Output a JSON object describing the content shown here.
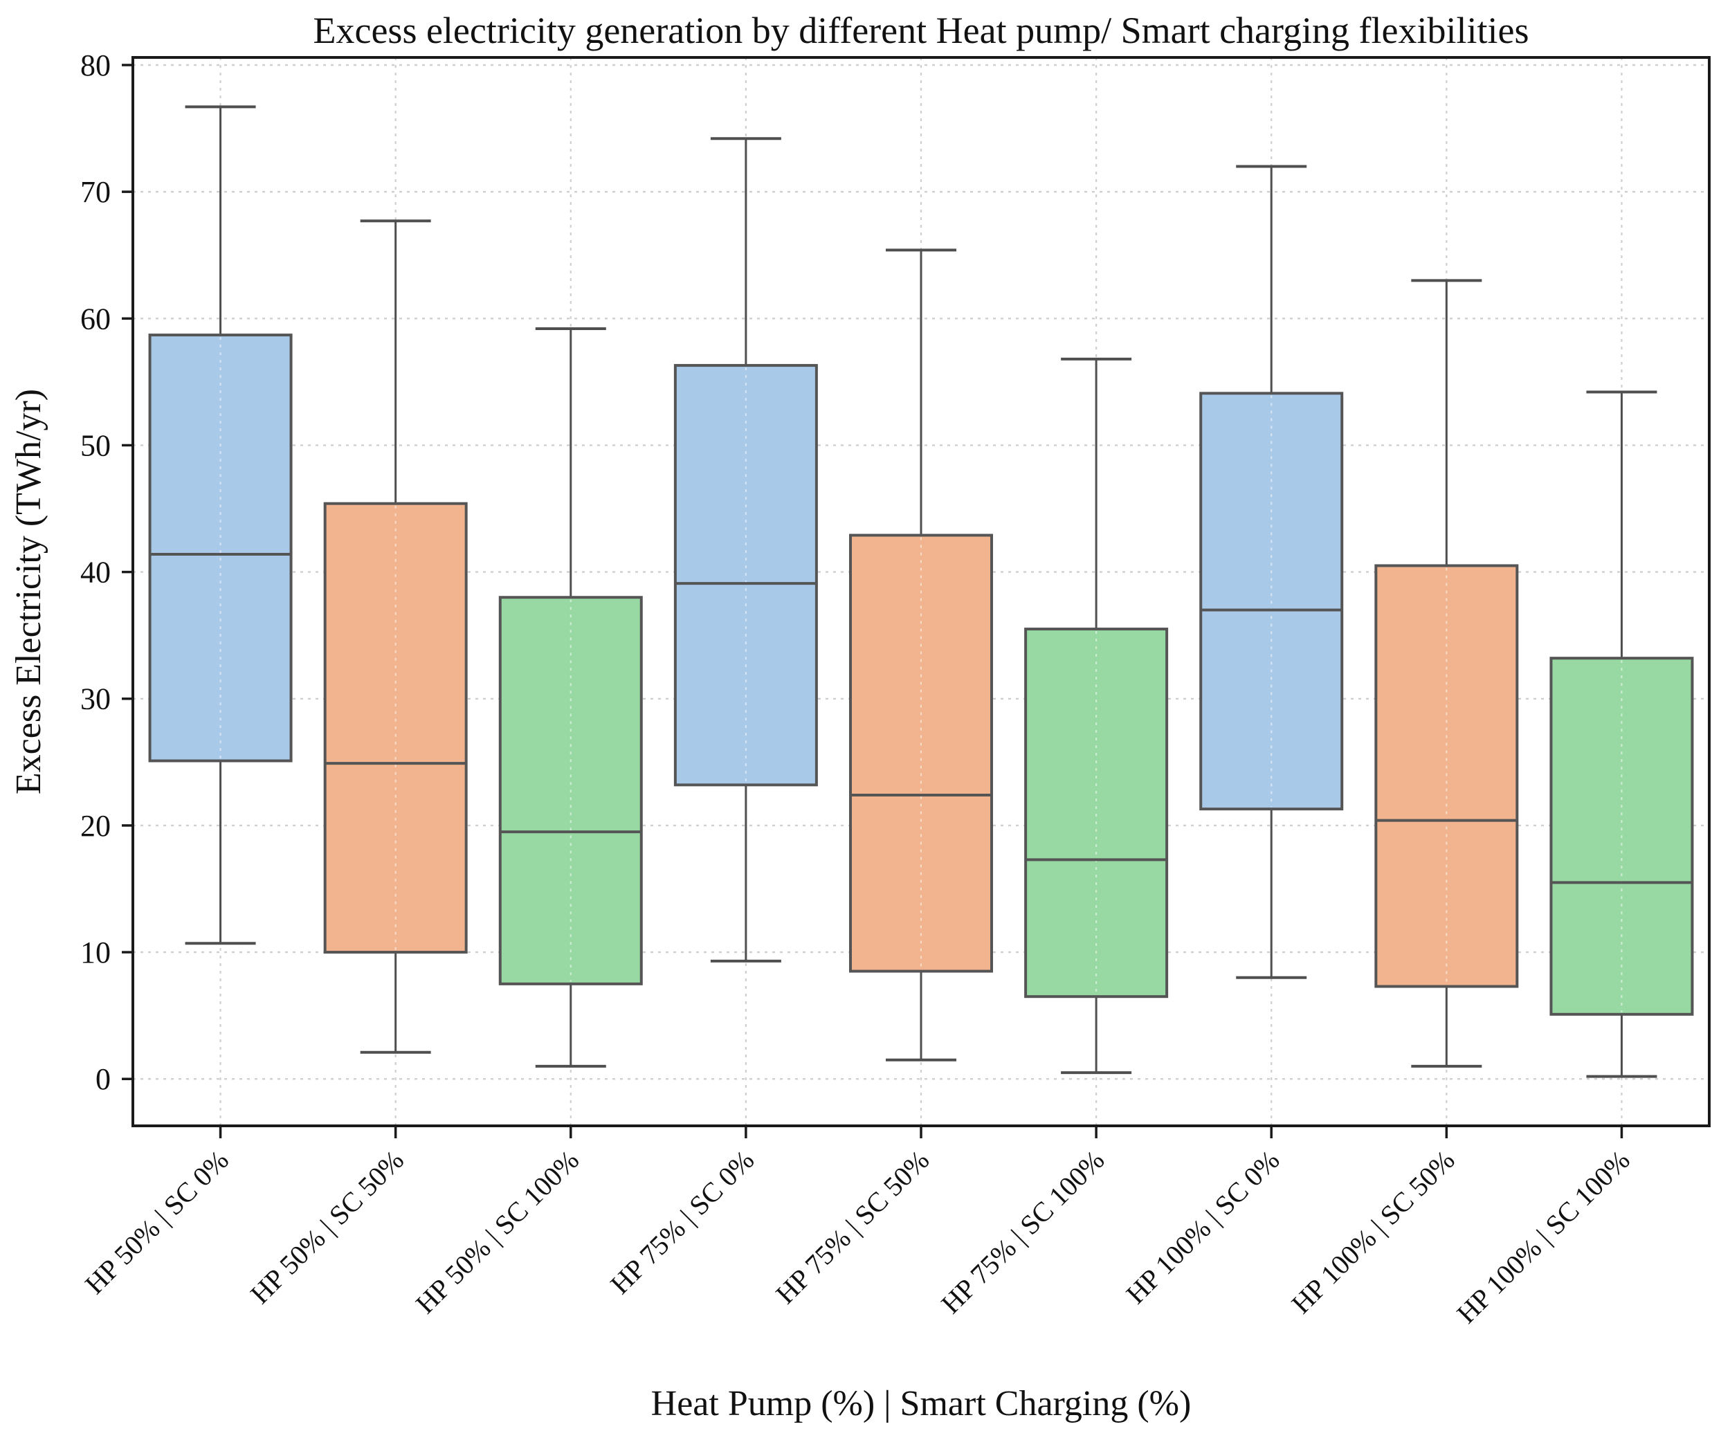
{
  "title": "Excess electricity generation by different Heat pump/ Smart charging flexibilities",
  "x_axis": {
    "label": "Heat Pump (%) | Smart Charging (%)",
    "tick_rotation_deg": 45
  },
  "y_axis": {
    "label": "Excess Electricity (TWh/yr)",
    "ticks": [
      0,
      10,
      20,
      30,
      40,
      50,
      60,
      70,
      80
    ]
  },
  "style": {
    "box_edge_color": "#555555",
    "whisker_color": "#4f4f4f",
    "median_color": "#555555",
    "grid_color": "#cfcfcf",
    "spine_color": "#1a1a1a",
    "background": "#ffffff",
    "group_colors": {
      "sc0": "#a9c9e9",
      "sc50": "#f1b48e",
      "sc100": "#97d8a3"
    }
  },
  "chart_data": {
    "type": "boxplot",
    "title": "Excess electricity generation by different Heat pump/ Smart charging flexibilities",
    "xlabel": "Heat Pump (%) | Smart Charging (%)",
    "ylabel": "Excess Electricity (TWh/yr)",
    "categories": [
      "HP 50% | SC 0%",
      "HP 50% | SC 50%",
      "HP 50% | SC 100%",
      "HP 75% | SC 0%",
      "HP 75% | SC 50%",
      "HP 75% | SC 100%",
      "HP 100% | SC 0%",
      "HP 100% | SC 50%",
      "HP 100% | SC 100%"
    ],
    "series": [
      {
        "category": "HP 50% | SC 0%",
        "whisker_low": 10.7,
        "q1": 25.1,
        "median": 41.4,
        "q3": 58.7,
        "whisker_high": 76.7,
        "color": "#a9c9e9"
      },
      {
        "category": "HP 50% | SC 50%",
        "whisker_low": 2.1,
        "q1": 10.0,
        "median": 24.9,
        "q3": 45.4,
        "whisker_high": 67.7,
        "color": "#f1b48e"
      },
      {
        "category": "HP 50% | SC 100%",
        "whisker_low": 1.0,
        "q1": 7.5,
        "median": 19.5,
        "q3": 38.0,
        "whisker_high": 59.2,
        "color": "#97d8a3"
      },
      {
        "category": "HP 75% | SC 0%",
        "whisker_low": 9.3,
        "q1": 23.2,
        "median": 39.1,
        "q3": 56.3,
        "whisker_high": 74.2,
        "color": "#a9c9e9"
      },
      {
        "category": "HP 75% | SC 50%",
        "whisker_low": 1.5,
        "q1": 8.5,
        "median": 22.4,
        "q3": 42.9,
        "whisker_high": 65.4,
        "color": "#f1b48e"
      },
      {
        "category": "HP 75% | SC 100%",
        "whisker_low": 0.5,
        "q1": 6.5,
        "median": 17.3,
        "q3": 35.5,
        "whisker_high": 56.8,
        "color": "#97d8a3"
      },
      {
        "category": "HP 100% | SC 0%",
        "whisker_low": 8.0,
        "q1": 21.3,
        "median": 37.0,
        "q3": 54.1,
        "whisker_high": 72.0,
        "color": "#a9c9e9"
      },
      {
        "category": "HP 100% | SC 50%",
        "whisker_low": 1.0,
        "q1": 7.3,
        "median": 20.4,
        "q3": 40.5,
        "whisker_high": 63.0,
        "color": "#f1b48e"
      },
      {
        "category": "HP 100% | SC 100%",
        "whisker_low": 0.2,
        "q1": 5.1,
        "median": 15.5,
        "q3": 33.2,
        "whisker_high": 54.2,
        "color": "#97d8a3"
      }
    ],
    "y_ticks": [
      0,
      10,
      20,
      30,
      40,
      50,
      60,
      70,
      80
    ],
    "ylim": [
      -3.7,
      80.6
    ],
    "grid": true,
    "legend_position": "none"
  }
}
